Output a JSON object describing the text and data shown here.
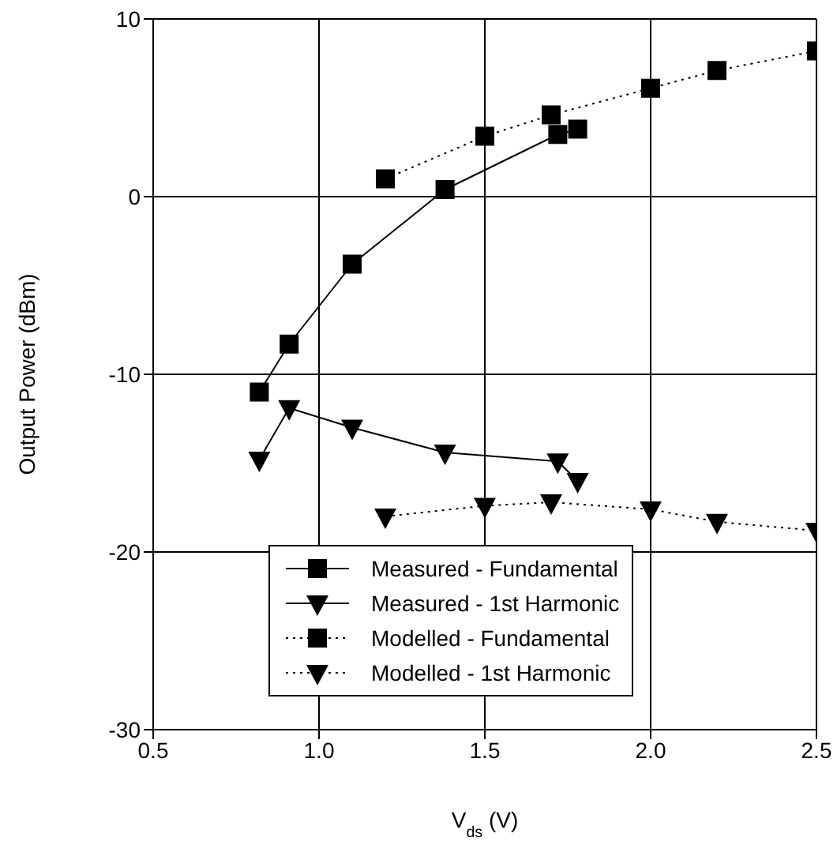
{
  "chart_data": {
    "type": "line",
    "xlabel": "V$_{ds}$ (V)",
    "ylabel": "Output Power (dBm)",
    "xlim": [
      0.5,
      2.5
    ],
    "xticks": [
      0.5,
      {
        "value": 1,
        "label": "1.0"
      },
      1.5,
      {
        "value": 2,
        "label": "2.0"
      },
      2.5
    ],
    "ylim": [
      -30,
      10
    ],
    "yticks": [
      -30,
      -20,
      -10,
      0,
      10
    ],
    "grid": true,
    "legend": "bottom",
    "series": [
      {
        "name": "Measured - Fundamental",
        "color": "#000000",
        "marker": "square",
        "line_style": "solid",
        "x": [
          0.82,
          0.91,
          1.1,
          1.38,
          1.72,
          1.78
        ],
        "values": [
          -11,
          -8.3,
          -3.8,
          0.4,
          3.5,
          3.8
        ]
      },
      {
        "name": "Measured - 1st Harmonic",
        "color": "#000000",
        "marker": "triangle",
        "line_style": "solid",
        "x": [
          0.82,
          0.91,
          1.1,
          1.38,
          1.72,
          1.78
        ],
        "values": [
          -14.8,
          -11.9,
          -13,
          -14.4,
          -14.9,
          -16
        ]
      },
      {
        "name": "Modelled - Fundamental",
        "color": "#000000",
        "marker": "square",
        "line_style": "dotted",
        "x": [
          1.2,
          1.5,
          1.7,
          2,
          2.2,
          2.5
        ],
        "values": [
          1,
          3.4,
          4.6,
          6.1,
          7.1,
          8.2
        ]
      },
      {
        "name": "Modelled - 1st Harmonic",
        "color": "#000000",
        "marker": "triangle",
        "line_style": "dotted",
        "x": [
          1.2,
          1.5,
          1.7,
          2,
          2.2,
          2.5
        ],
        "values": [
          -18,
          -17.4,
          -17.2,
          -17.6,
          -18.3,
          -18.8
        ]
      }
    ]
  }
}
